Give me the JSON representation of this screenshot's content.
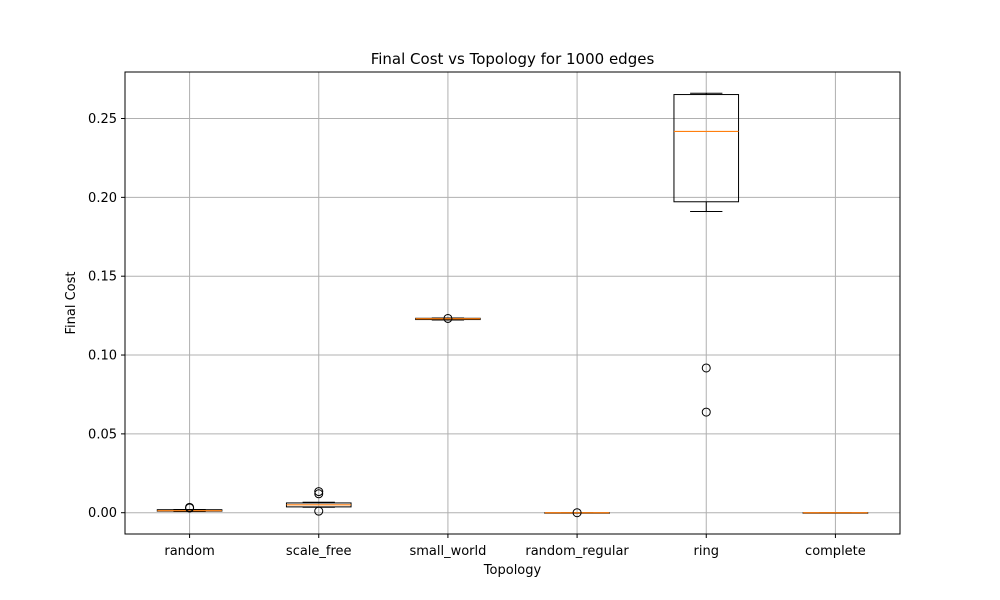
{
  "chart_data": {
    "type": "box",
    "title": "Final Cost vs Topology for 1000 edges",
    "xlabel": "Topology",
    "ylabel": "Final Cost",
    "categories": [
      "random",
      "scale_free",
      "small_world",
      "random_regular",
      "ring",
      "complete"
    ],
    "ylim": [
      -0.0135,
      0.2795
    ],
    "yticks": [
      0.0,
      0.05,
      0.1,
      0.15,
      0.2,
      0.25
    ],
    "ytick_labels": [
      "0.00",
      "0.05",
      "0.10",
      "0.15",
      "0.20",
      "0.25"
    ],
    "grid": true,
    "box_color": "#000000",
    "median_color": "#ff7f0e",
    "grid_color": "#b0b0b0",
    "boxes": [
      {
        "whisker_low": 0.0008,
        "q1": 0.001,
        "median": 0.0013,
        "q3": 0.0019,
        "whisker_high": 0.002,
        "outliers": [
          0.003,
          0.0034
        ]
      },
      {
        "whisker_low": 0.0035,
        "q1": 0.0037,
        "median": 0.005,
        "q3": 0.0062,
        "whisker_high": 0.0066,
        "outliers": [
          0.012,
          0.0134,
          0.001
        ]
      },
      {
        "whisker_low": 0.1222,
        "q1": 0.1225,
        "median": 0.123,
        "q3": 0.1233,
        "whisker_high": 0.1235,
        "outliers": [
          0.1232
        ]
      },
      {
        "whisker_low": 0.0,
        "q1": 0.0,
        "median": 0.0,
        "q3": 0.0,
        "whisker_high": 0.0,
        "outliers": [
          0.0
        ]
      },
      {
        "whisker_low": 0.191,
        "q1": 0.1972,
        "median": 0.2418,
        "q3": 0.2652,
        "whisker_high": 0.266,
        "outliers": [
          0.0918,
          0.0638
        ]
      },
      {
        "whisker_low": 0.0,
        "q1": 0.0,
        "median": 0.0,
        "q3": 0.0,
        "whisker_high": 0.0,
        "outliers": []
      }
    ]
  }
}
